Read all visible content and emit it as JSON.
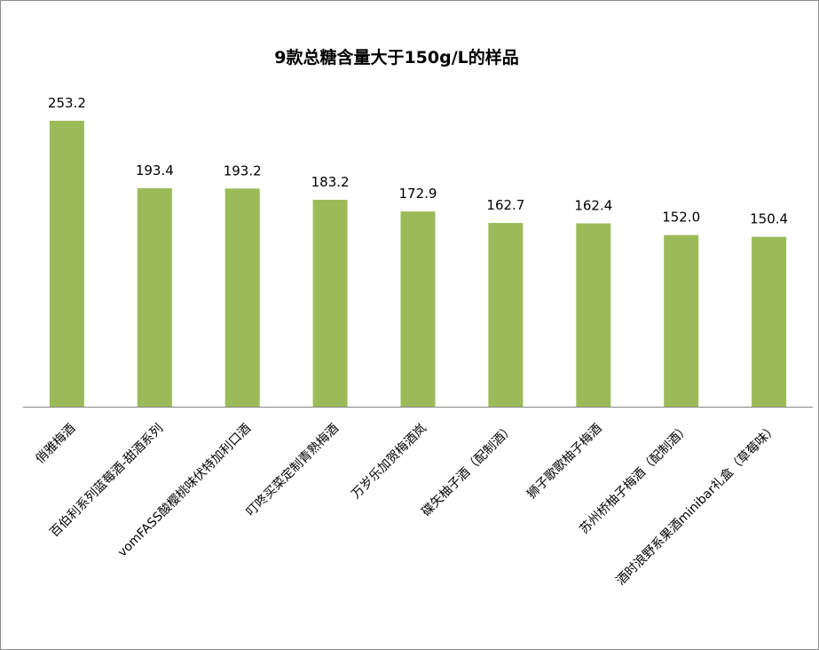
{
  "chart_data": {
    "type": "bar",
    "title": "9款总糖含量大于150g/L的样品",
    "categories": [
      "俏雅梅酒",
      "百伯利系列蓝莓酒-甜酒系列",
      "vomFASS酸樱桃味伏特加利口酒",
      "叮咚买菜定制青熟梅酒",
      "万岁乐加贺梅酒岚",
      "碟矢柚子酒（配制酒）",
      "狮子歌歌柚子梅酒",
      "苏州桥柚子梅酒（配制酒）",
      "酒时浪野系果酒minibar礼盒（草莓味）"
    ],
    "values": [
      253.2,
      193.4,
      193.2,
      183.2,
      172.9,
      162.7,
      162.4,
      152.0,
      150.4
    ],
    "value_labels": [
      "253.2",
      "193.4",
      "193.2",
      "183.2",
      "172.9",
      "162.7",
      "162.4",
      "152.0",
      "150.4"
    ],
    "xlabel": "",
    "ylabel": "",
    "ylim": [
      0,
      253.2
    ],
    "grid": false,
    "legend": "none",
    "bar_color": "#9BBB59",
    "axis_color": "#868686"
  }
}
